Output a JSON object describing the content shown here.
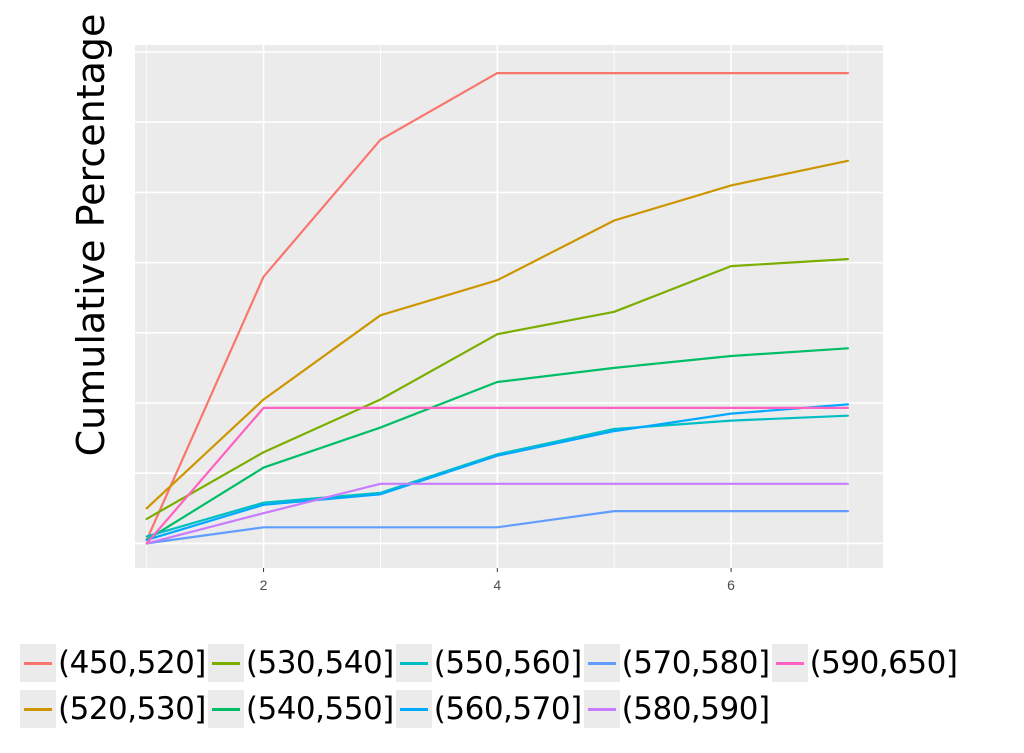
{
  "chart_data": {
    "type": "line",
    "ylabel": "Cumulative Percentage",
    "xlabel": "",
    "x": [
      1,
      2,
      3,
      4,
      5,
      6,
      7
    ],
    "x_ticks": [
      "2",
      "4",
      "6"
    ],
    "xlim": [
      0.9,
      7.3
    ],
    "ylim": [
      -0.35,
      7.1
    ],
    "grid": true,
    "legend_position": "bottom",
    "series": [
      {
        "name": "(450,520]",
        "color": "#F8766D",
        "values": [
          0.05,
          3.8,
          5.75,
          6.7,
          6.7,
          6.7,
          6.7
        ]
      },
      {
        "name": "(520,530]",
        "color": "#CD9600",
        "values": [
          0.5,
          2.05,
          3.25,
          3.75,
          4.6,
          5.1,
          5.45
        ]
      },
      {
        "name": "(530,540]",
        "color": "#7CAE00",
        "values": [
          0.35,
          1.3,
          2.05,
          2.98,
          3.3,
          3.95,
          4.05
        ]
      },
      {
        "name": "(540,550]",
        "color": "#00BE67",
        "values": [
          0.05,
          1.08,
          1.65,
          2.3,
          2.5,
          2.67,
          2.78
        ]
      },
      {
        "name": "(550,560]",
        "color": "#00BFC4",
        "values": [
          0.1,
          0.58,
          0.72,
          1.27,
          1.63,
          1.75,
          1.82
        ]
      },
      {
        "name": "(560,570]",
        "color": "#00A9FF",
        "values": [
          0.05,
          0.55,
          0.7,
          1.25,
          1.6,
          1.85,
          1.98
        ]
      },
      {
        "name": "(570,580]",
        "color": "#619CFF",
        "values": [
          0.0,
          0.23,
          0.23,
          0.23,
          0.46,
          0.46,
          0.46
        ]
      },
      {
        "name": "(580,590]",
        "color": "#C77CFF",
        "values": [
          0.0,
          0.43,
          0.85,
          0.85,
          0.85,
          0.85,
          0.85
        ]
      },
      {
        "name": "(590,650]",
        "color": "#FF61C3",
        "values": [
          0.0,
          1.93,
          1.93,
          1.93,
          1.93,
          1.93,
          1.93
        ]
      }
    ]
  },
  "legend": {
    "row1": [
      "(450,520]",
      "(530,540]",
      "(550,560]",
      "(570,580]",
      "(590,650]"
    ],
    "row2": [
      "(520,530]",
      "(540,550]",
      "(560,570]",
      "(580,590]"
    ]
  }
}
